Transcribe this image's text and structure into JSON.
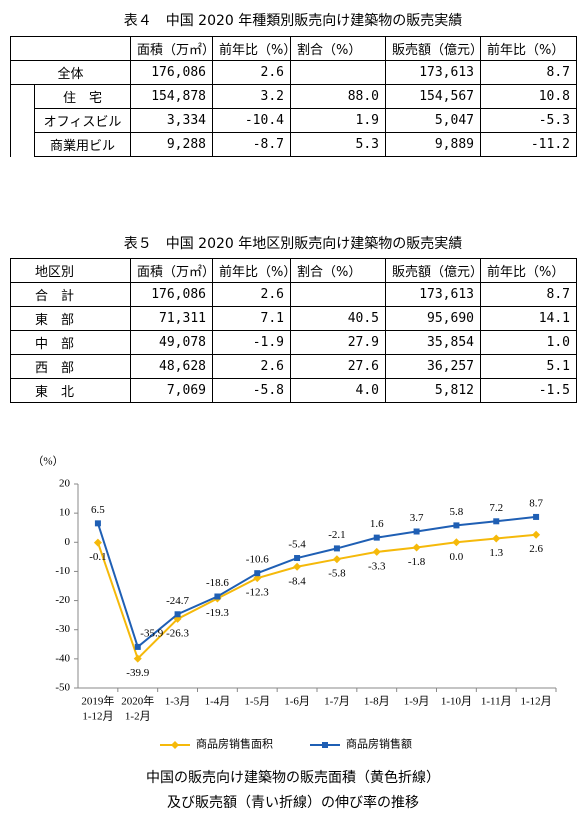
{
  "table1": {
    "title": "表４　中国 2020 年種類別販売向け建築物の販売実績",
    "header": [
      "面積（万㎡）",
      "前年比（%）",
      "割合（%）",
      "販売額（億元）",
      "前年比（%）"
    ],
    "total": {
      "label": "全体",
      "cells": [
        "176,086",
        "2.6",
        null,
        "173,613",
        "8.7"
      ]
    },
    "breakdown": [
      {
        "label": "住　宅",
        "cells": [
          "154,878",
          "3.2",
          "88.0",
          "154,567",
          "10.8"
        ]
      },
      {
        "label": "オフィスビル",
        "cells": [
          "3,334",
          "-10.4",
          "1.9",
          "5,047",
          "-5.3"
        ]
      },
      {
        "label": "商業用ビル",
        "cells": [
          "9,288",
          "-8.7",
          "5.3",
          "9,889",
          "-11.2"
        ]
      }
    ]
  },
  "table2": {
    "title": "表５　中国 2020 年地区別販売向け建築物の販売実績",
    "header": [
      "地区別",
      "面積（万㎡）",
      "前年比（%）",
      "割合（%）",
      "販売額（億元）",
      "前年比（%）"
    ],
    "rows": [
      {
        "label": "合　計",
        "cells": [
          "176,086",
          "2.6",
          null,
          "173,613",
          "8.7"
        ]
      },
      {
        "label": "東　部",
        "cells": [
          "71,311",
          "7.1",
          "40.5",
          "95,690",
          "14.1"
        ]
      },
      {
        "label": "中　部",
        "cells": [
          "49,078",
          "-1.9",
          "27.9",
          "35,854",
          "1.0"
        ]
      },
      {
        "label": "西　部",
        "cells": [
          "48,628",
          "2.6",
          "27.6",
          "36,257",
          "5.1"
        ]
      },
      {
        "label": "東　北",
        "cells": [
          "7,069",
          "-5.8",
          "4.0",
          "5,812",
          "-1.5"
        ]
      }
    ]
  },
  "chart_data": {
    "type": "line",
    "y_label": "（%）",
    "categories": [
      [
        "2019年",
        "1-12月"
      ],
      [
        "2020年",
        "1-2月"
      ],
      [
        "1-3月"
      ],
      [
        "1-4月"
      ],
      [
        "1-5月"
      ],
      [
        "1-6月"
      ],
      [
        "1-7月"
      ],
      [
        "1-8月"
      ],
      [
        "1-9月"
      ],
      [
        "1-10月"
      ],
      [
        "1-11月"
      ],
      [
        "1-12月"
      ]
    ],
    "series": [
      {
        "name": "商品房销售面积",
        "color": "#f5b90a",
        "marker": "diamond",
        "values": [
          -0.1,
          -39.9,
          -26.3,
          -19.3,
          -12.3,
          -8.4,
          -5.8,
          -3.3,
          -1.8,
          0.0,
          1.3,
          2.6
        ],
        "value_labels": [
          "-0.1",
          "-39.9",
          "-26.3",
          "-19.3",
          "-12.3",
          "-8.4",
          "-5.8",
          "-3.3",
          "-1.8",
          "0.0",
          "1.3",
          "2.6"
        ]
      },
      {
        "name": "商品房销售额",
        "color": "#1f5fb4",
        "marker": "square",
        "values": [
          6.5,
          -35.9,
          -24.7,
          -18.6,
          -10.6,
          -5.4,
          -2.1,
          1.6,
          3.7,
          5.8,
          7.2,
          8.7
        ],
        "value_labels": [
          "6.5",
          "-35.9",
          "-24.7",
          "-18.6",
          "-10.6",
          "-5.4",
          "-2.1",
          "1.6",
          "3.7",
          "5.8",
          "7.2",
          "8.7"
        ]
      }
    ],
    "ylim": [
      -50,
      20
    ],
    "yticks": [
      -50,
      -40,
      -30,
      -20,
      -10,
      0,
      10,
      20
    ],
    "grid": false,
    "caption": [
      "中国の販売向け建築物の販売面積（黄色折線）",
      "及び販売額（青い折線）の伸び率の推移"
    ]
  }
}
